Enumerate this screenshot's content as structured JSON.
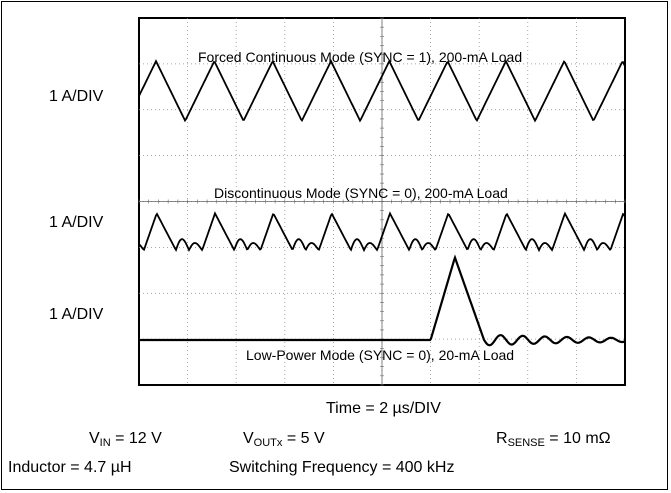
{
  "chart_data": {
    "type": "line",
    "x_scale": "Time = 2 µs/DIV",
    "x_divisions": 10,
    "y_divisions": 8,
    "grid": true,
    "traces": [
      {
        "name": "Forced Continuous Mode (SYNC = 1), 200-mA Load",
        "scale_label": "1 A/DIV",
        "waveform": "triangle",
        "period_div": 1.2,
        "peak_div": 1.5,
        "valley_div": 0.2
      },
      {
        "name": "Discontinuous Mode (SYNC = 0), 200-mA Load",
        "scale_label": "1 A/DIV",
        "waveform": "triangle-with-ringing",
        "period_div": 1.2,
        "peak_div": 0.95,
        "valley_div": 0.15
      },
      {
        "name": "Low-Power Mode (SYNC = 0), 20-mA Load",
        "scale_label": "1 A/DIV",
        "waveform": "single-pulse",
        "pulse_start_div": 6.0,
        "pulse_peak_div": 1.8,
        "baseline_div": 0.0
      }
    ]
  },
  "conditions": {
    "time_label": "Time = 2 µs/DIV",
    "vin_label": "V",
    "vin_sub": "IN",
    "vin_value": " = 12 V",
    "vout_label": "V",
    "vout_sub": "OUTx",
    "vout_value": " = 5 V",
    "rsense_label": "R",
    "rsense_sub": "SENSE",
    "rsense_value": " = 10 mΩ",
    "inductor": "Inductor = 4.7 µH",
    "frequency": "Switching Frequency = 400 kHz"
  }
}
